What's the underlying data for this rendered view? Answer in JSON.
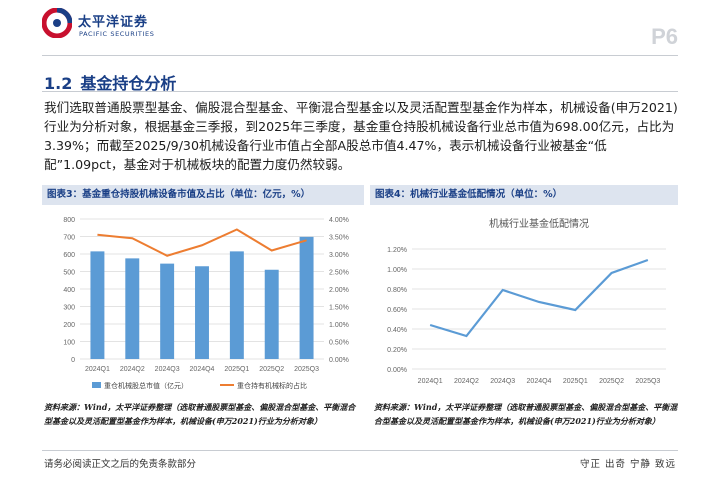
{
  "header": {
    "logo_cn": "太平洋证券",
    "logo_en": "PACIFIC SECURITIES",
    "page_no": "P6"
  },
  "section": {
    "number": "1.2",
    "title": "基金持仓分析"
  },
  "paragraph": "我们选取普通股票型基金、偏股混合型基金、平衡混合型基金以及灵活配置型基金作为样本，机械设备(申万2021)行业为分析对象，根据基金三季报，到2025年三季度，基金重仓持股机械设备行业总市值为698.00亿元，占比为3.39%；而截至2025/9/30机械设备行业市值占全部A股总市值4.47%，表示机械设备行业被基金“低配”1.09pct，基金对于机械板块的配置力度仍然较弱。",
  "figure3": {
    "caption": "图表3：基金重仓持股机械设备市值及占比（单位：亿元，%）",
    "source": "资料来源：Wind，太平洋证券整理（选取普通股票型基金、偏股混合型基金、平衡混合型基金以及灵活配置型基金作为样本，机械设备(申万2021)行业为分析对象）"
  },
  "figure4": {
    "caption": "图表4：机械行业基金低配情况（单位：%）",
    "source": "资料来源：Wind，太平洋证券整理（选取普通股票型基金、偏股混合型基金、平衡混合型基金以及灵活配置型基金作为样本，机械设备(申万2021)行业为分析对象）"
  },
  "footer": {
    "left": "请务必阅读正文之后的免责条款部分",
    "right": "守正 出奇 宁静 致远"
  },
  "colors": {
    "brand": "#1a3f86",
    "bar": "#5b9bd5",
    "line_orange": "#ed7d31"
  },
  "chart_data": [
    {
      "type": "bar",
      "title": "",
      "categories": [
        "2024Q1",
        "2024Q2",
        "2024Q3",
        "2024Q4",
        "2025Q1",
        "2025Q2",
        "2025Q3"
      ],
      "series": [
        {
          "name": "重仓机械股总市值（亿元）",
          "axis": "left",
          "values": [
            615,
            575,
            545,
            530,
            615,
            510,
            698
          ]
        },
        {
          "name": "重仓持有机械标的占比",
          "axis": "right",
          "type": "line",
          "values": [
            3.55,
            3.45,
            2.95,
            3.25,
            3.7,
            3.1,
            3.39
          ]
        }
      ],
      "ylim_left": [
        0,
        800
      ],
      "yticks_left": [
        "0",
        "100",
        "200",
        "300",
        "400",
        "500",
        "600",
        "700",
        "800"
      ],
      "ylim_right": [
        0,
        4.0
      ],
      "yticks_right": [
        "0.00%",
        "0.50%",
        "1.00%",
        "1.50%",
        "2.00%",
        "2.50%",
        "3.00%",
        "3.50%",
        "4.00%"
      ],
      "legend": "bottom",
      "grid": true
    },
    {
      "type": "line",
      "title": "机械行业基金低配情况",
      "categories": [
        "2024Q1",
        "2024Q2",
        "2024Q3",
        "2024Q4",
        "2025Q1",
        "2025Q2",
        "2025Q3"
      ],
      "series": [
        {
          "values": [
            0.44,
            0.33,
            0.79,
            0.67,
            0.59,
            0.96,
            1.09
          ]
        }
      ],
      "ylim": [
        0,
        1.2
      ],
      "yticks": [
        "0.00%",
        "0.20%",
        "0.40%",
        "0.60%",
        "0.80%",
        "1.00%",
        "1.20%"
      ],
      "grid": true
    }
  ]
}
